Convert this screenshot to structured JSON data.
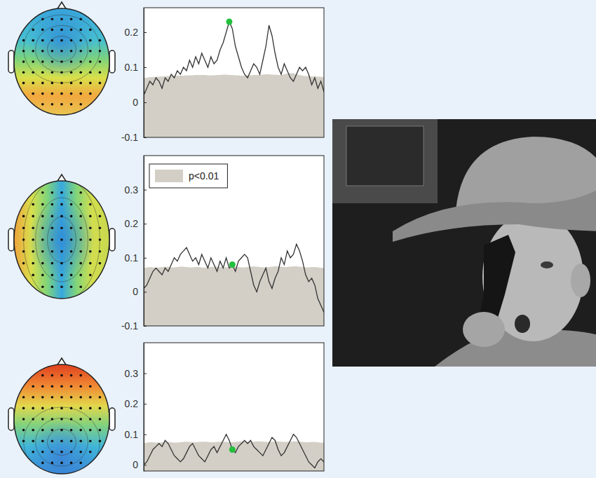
{
  "chart_data": [
    {
      "type": "line",
      "tick_labels": "y",
      "xlim": [
        0,
        59
      ],
      "ylim": [
        -0.1,
        0.27
      ],
      "yticks": [
        -0.1,
        0,
        0.1,
        0.2
      ],
      "x": [
        0,
        1,
        2,
        3,
        4,
        5,
        6,
        7,
        8,
        9,
        10,
        11,
        12,
        13,
        14,
        15,
        16,
        17,
        18,
        19,
        20,
        21,
        22,
        23,
        24,
        25,
        26,
        27,
        28,
        29,
        30,
        31,
        32,
        33,
        34,
        35,
        36,
        37,
        38,
        39,
        40,
        41,
        42,
        43,
        44,
        45,
        46,
        47,
        48,
        49,
        50,
        51,
        52,
        53,
        54,
        55,
        56,
        57,
        58,
        59
      ],
      "series": [
        {
          "type": "area",
          "color": "#d3cfc6",
          "values": [
            0.07,
            0.07,
            0.072,
            0.072,
            0.073,
            0.073,
            0.074,
            0.074,
            0.075,
            0.075,
            0.075,
            0.076,
            0.076,
            0.076,
            0.077,
            0.077,
            0.077,
            0.078,
            0.078,
            0.078,
            0.078,
            0.077,
            0.077,
            0.077,
            0.078,
            0.078,
            0.079,
            0.079,
            0.078,
            0.078,
            0.077,
            0.077,
            0.076,
            0.076,
            0.077,
            0.077,
            0.078,
            0.078,
            0.079,
            0.079,
            0.08,
            0.08,
            0.079,
            0.079,
            0.078,
            0.078,
            0.08,
            0.082,
            0.083,
            0.083,
            0.08,
            0.078,
            0.076,
            0.075,
            0.075,
            0.074,
            0.074,
            0.073,
            0.073,
            0.072
          ]
        },
        {
          "type": "line",
          "color": "#333333",
          "line_style": "solid",
          "values": [
            0.02,
            0.04,
            0.06,
            0.05,
            0.07,
            0.06,
            0.04,
            0.07,
            0.06,
            0.08,
            0.07,
            0.09,
            0.08,
            0.1,
            0.09,
            0.12,
            0.1,
            0.13,
            0.11,
            0.14,
            0.12,
            0.1,
            0.13,
            0.11,
            0.12,
            0.15,
            0.17,
            0.2,
            0.23,
            0.21,
            0.16,
            0.13,
            0.1,
            0.08,
            0.07,
            0.09,
            0.11,
            0.1,
            0.08,
            0.12,
            0.16,
            0.22,
            0.19,
            0.14,
            0.1,
            0.08,
            0.11,
            0.09,
            0.07,
            0.06,
            0.08,
            0.1,
            0.09,
            0.1,
            0.08,
            0.05,
            0.07,
            0.04,
            0.06,
            0.03
          ]
        },
        {
          "type": "scatter",
          "color": "#22c03c",
          "marker": "circle",
          "x": [
            28
          ],
          "values": [
            0.23
          ]
        }
      ]
    },
    {
      "type": "line",
      "tick_labels": "y",
      "legend": "top-left",
      "xlim": [
        0,
        59
      ],
      "ylim": [
        -0.1,
        0.4
      ],
      "yticks": [
        -0.1,
        0,
        0.1,
        0.2,
        0.3
      ],
      "x": [
        0,
        1,
        2,
        3,
        4,
        5,
        6,
        7,
        8,
        9,
        10,
        11,
        12,
        13,
        14,
        15,
        16,
        17,
        18,
        19,
        20,
        21,
        22,
        23,
        24,
        25,
        26,
        27,
        28,
        29,
        30,
        31,
        32,
        33,
        34,
        35,
        36,
        37,
        38,
        39,
        40,
        41,
        42,
        43,
        44,
        45,
        46,
        47,
        48,
        49,
        50,
        51,
        52,
        53,
        54,
        55,
        56,
        57,
        58,
        59
      ],
      "series": [
        {
          "type": "area",
          "name": "p<0.01",
          "color": "#d3cfc6",
          "values": [
            0.07,
            0.072,
            0.073,
            0.072,
            0.071,
            0.072,
            0.073,
            0.074,
            0.073,
            0.072,
            0.072,
            0.073,
            0.074,
            0.074,
            0.073,
            0.072,
            0.072,
            0.073,
            0.073,
            0.072,
            0.071,
            0.072,
            0.073,
            0.074,
            0.074,
            0.073,
            0.072,
            0.072,
            0.073,
            0.074,
            0.074,
            0.073,
            0.072,
            0.072,
            0.073,
            0.074,
            0.075,
            0.074,
            0.073,
            0.072,
            0.072,
            0.073,
            0.074,
            0.075,
            0.075,
            0.074,
            0.073,
            0.073,
            0.074,
            0.075,
            0.075,
            0.074,
            0.073,
            0.072,
            0.072,
            0.073,
            0.073,
            0.072,
            0.071,
            0.07
          ]
        },
        {
          "type": "line",
          "color": "#333333",
          "line_style": "solid",
          "values": [
            0.01,
            0.02,
            0.04,
            0.06,
            0.07,
            0.06,
            0.05,
            0.07,
            0.06,
            0.08,
            0.1,
            0.09,
            0.11,
            0.12,
            0.13,
            0.11,
            0.09,
            0.1,
            0.08,
            0.11,
            0.09,
            0.07,
            0.1,
            0.08,
            0.06,
            0.09,
            0.07,
            0.1,
            0.07,
            0.08,
            0.06,
            0.09,
            0.1,
            0.11,
            0.1,
            0.06,
            0.02,
            0,
            0.03,
            0.05,
            0.07,
            0.03,
            0.01,
            0.04,
            0.06,
            0.1,
            0.08,
            0.12,
            0.1,
            0.11,
            0.14,
            0.12,
            0.09,
            0.05,
            0.03,
            0.04,
            0.02,
            -0.02,
            -0.04,
            -0.06
          ]
        },
        {
          "type": "scatter",
          "color": "#22c03c",
          "marker": "circle",
          "x": [
            29
          ],
          "values": [
            0.08
          ]
        }
      ]
    },
    {
      "type": "line",
      "tick_labels": "y",
      "xlim": [
        0,
        59
      ],
      "ylim": [
        -0.02,
        0.4
      ],
      "yticks": [
        0,
        0.1,
        0.2,
        0.3
      ],
      "x": [
        0,
        1,
        2,
        3,
        4,
        5,
        6,
        7,
        8,
        9,
        10,
        11,
        12,
        13,
        14,
        15,
        16,
        17,
        18,
        19,
        20,
        21,
        22,
        23,
        24,
        25,
        26,
        27,
        28,
        29,
        30,
        31,
        32,
        33,
        34,
        35,
        36,
        37,
        38,
        39,
        40,
        41,
        42,
        43,
        44,
        45,
        46,
        47,
        48,
        49,
        50,
        51,
        52,
        53,
        54,
        55,
        56,
        57,
        58,
        59
      ],
      "series": [
        {
          "type": "area",
          "color": "#d3cfc6",
          "values": [
            0.072,
            0.073,
            0.074,
            0.074,
            0.073,
            0.073,
            0.074,
            0.075,
            0.075,
            0.074,
            0.073,
            0.073,
            0.074,
            0.075,
            0.076,
            0.075,
            0.074,
            0.074,
            0.075,
            0.076,
            0.076,
            0.075,
            0.074,
            0.074,
            0.075,
            0.076,
            0.076,
            0.075,
            0.074,
            0.074,
            0.075,
            0.076,
            0.077,
            0.076,
            0.075,
            0.075,
            0.076,
            0.077,
            0.077,
            0.076,
            0.075,
            0.075,
            0.076,
            0.077,
            0.077,
            0.076,
            0.075,
            0.075,
            0.076,
            0.077,
            0.077,
            0.076,
            0.075,
            0.074,
            0.074,
            0.075,
            0.075,
            0.074,
            0.073,
            0.073
          ]
        },
        {
          "type": "line",
          "color": "#333333",
          "line_style": "solid",
          "values": [
            0.0,
            0.01,
            0.03,
            0.05,
            0.06,
            0.07,
            0.06,
            0.08,
            0.07,
            0.05,
            0.03,
            0.02,
            0.01,
            0.02,
            0.04,
            0.06,
            0.07,
            0.05,
            0.03,
            0.02,
            0.01,
            0.03,
            0.05,
            0.06,
            0.04,
            0.06,
            0.08,
            0.1,
            0.08,
            0.05,
            0.04,
            0.06,
            0.07,
            0.08,
            0.07,
            0.08,
            0.06,
            0.05,
            0.04,
            0.03,
            0.05,
            0.07,
            0.09,
            0.08,
            0.05,
            0.03,
            0.04,
            0.06,
            0.08,
            0.1,
            0.09,
            0.07,
            0.05,
            0.03,
            0.01,
            0.0,
            -0.01,
            0.01,
            0.02,
            0.01
          ]
        },
        {
          "type": "scatter",
          "color": "#22c03c",
          "marker": "circle",
          "x": [
            29
          ],
          "values": [
            0.05
          ]
        }
      ]
    }
  ]
}
